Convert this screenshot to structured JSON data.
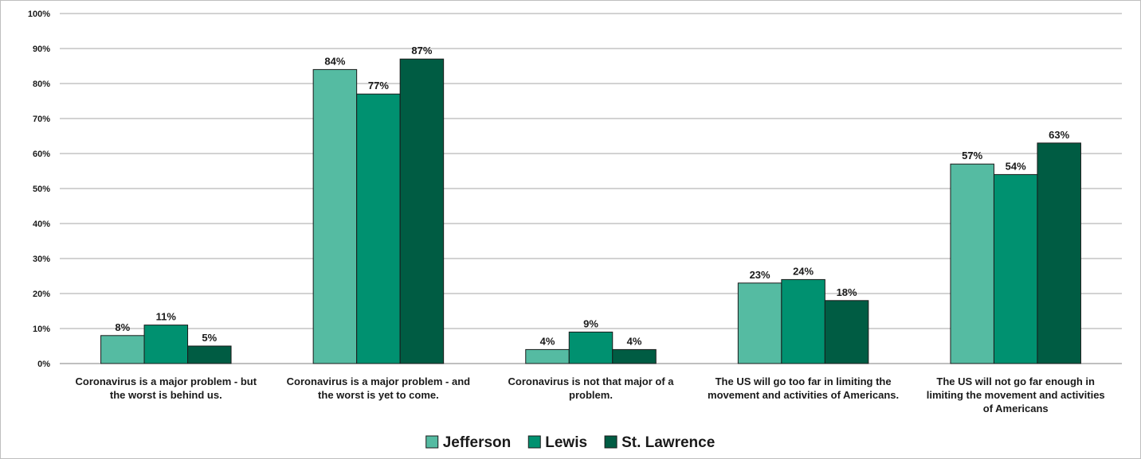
{
  "chart_data": {
    "type": "bar",
    "title": "",
    "xlabel": "",
    "ylabel": "",
    "ylim": [
      0,
      100
    ],
    "y_ticks": [
      "0%",
      "10%",
      "20%",
      "30%",
      "40%",
      "50%",
      "60%",
      "70%",
      "80%",
      "90%",
      "100%"
    ],
    "y_tick_values": [
      0,
      10,
      20,
      30,
      40,
      50,
      60,
      70,
      80,
      90,
      100
    ],
    "grid": true,
    "legend_position": "bottom",
    "categories": [
      [
        "Coronavirus is a major problem - but",
        "the worst is behind us."
      ],
      [
        "Coronavirus is a major problem - and",
        "the worst is yet to come."
      ],
      [
        "Coronavirus is not that major of a",
        "problem."
      ],
      [
        "The US will go too far in limiting the",
        "movement and activities of Americans."
      ],
      [
        "The US will not go far enough in",
        "limiting the movement and activities",
        "of Americans"
      ]
    ],
    "series": [
      {
        "name": "Jefferson",
        "color": "#55bba2",
        "values": [
          8,
          84,
          4,
          23,
          57
        ],
        "labels": [
          "8%",
          "84%",
          "4%",
          "23%",
          "57%"
        ]
      },
      {
        "name": "Lewis",
        "color": "#009170",
        "values": [
          11,
          77,
          9,
          24,
          54
        ],
        "labels": [
          "11%",
          "77%",
          "9%",
          "24%",
          "54%"
        ]
      },
      {
        "name": "St. Lawrence",
        "color": "#005c43",
        "values": [
          5,
          87,
          4,
          18,
          63
        ],
        "labels": [
          "5%",
          "87%",
          "4%",
          "18%",
          "63%"
        ]
      }
    ]
  }
}
